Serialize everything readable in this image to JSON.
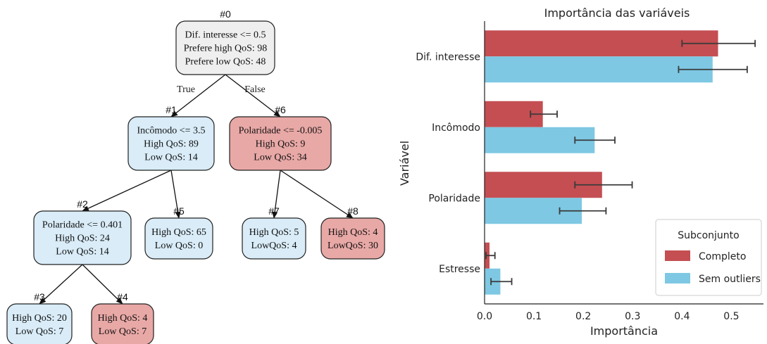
{
  "tree": {
    "nodes": [
      {
        "id": "#0",
        "lines": [
          "Dif. interesse <= 0.5",
          "Prefere high QoS: 98",
          "Prefere low QoS: 48"
        ],
        "fill": "#efefef"
      },
      {
        "id": "#1",
        "lines": [
          "Incômodo <= 3.5",
          "High QoS: 89",
          "Low QoS: 14"
        ],
        "fill": "#d9ecf8"
      },
      {
        "id": "#6",
        "lines": [
          "Polaridade <= -0.005",
          "High QoS: 9",
          "Low QoS: 34"
        ],
        "fill": "#e8a8a6"
      },
      {
        "id": "#2",
        "lines": [
          "Polaridade <= 0.401",
          "High QoS: 24",
          "Low QoS: 14"
        ],
        "fill": "#d9ecf8"
      },
      {
        "id": "#5",
        "lines": [
          "High QoS: 65",
          "Low QoS: 0"
        ],
        "fill": "#d9ecf8"
      },
      {
        "id": "#7",
        "lines": [
          "High QoS: 5",
          "LowQoS: 4"
        ],
        "fill": "#d9ecf8"
      },
      {
        "id": "#8",
        "lines": [
          "High QoS: 4",
          "LowQoS: 30"
        ],
        "fill": "#e8a8a6"
      },
      {
        "id": "#3",
        "lines": [
          "High QoS: 20",
          "Low QoS: 7"
        ],
        "fill": "#d9ecf8"
      },
      {
        "id": "#4",
        "lines": [
          "High QoS: 4",
          "Low QoS: 7"
        ],
        "fill": "#e8a8a6"
      }
    ],
    "edges": [
      {
        "from": "#0",
        "to": "#1",
        "label": "True"
      },
      {
        "from": "#0",
        "to": "#6",
        "label": "False"
      },
      {
        "from": "#1",
        "to": "#2",
        "label": ""
      },
      {
        "from": "#1",
        "to": "#5",
        "label": ""
      },
      {
        "from": "#6",
        "to": "#7",
        "label": ""
      },
      {
        "from": "#6",
        "to": "#8",
        "label": ""
      },
      {
        "from": "#2",
        "to": "#3",
        "label": ""
      },
      {
        "from": "#2",
        "to": "#4",
        "label": ""
      }
    ]
  },
  "chart_data": {
    "type": "bar",
    "orientation": "horizontal",
    "title": "Importância das variáveis",
    "xlabel": "Importância",
    "ylabel": "Variável",
    "categories": [
      "Dif. interesse",
      "Incômodo",
      "Polaridade",
      "Estresse"
    ],
    "xlim": [
      0,
      0.565
    ],
    "xticks": [
      "0.0",
      "0.1",
      "0.2",
      "0.3",
      "0.4",
      "0.5"
    ],
    "grid": false,
    "legend_title": "Subconjunto",
    "legend_position": "lower-right",
    "series": [
      {
        "name": "Completo",
        "color": "#c44e52",
        "values": [
          0.473,
          0.118,
          0.238,
          0.01
        ],
        "err_low": [
          0.4,
          0.093,
          0.183,
          0.003
        ],
        "err_high": [
          0.548,
          0.147,
          0.299,
          0.021
        ]
      },
      {
        "name": "Sem outliers",
        "color": "#7ec8e3",
        "values": [
          0.462,
          0.223,
          0.197,
          0.032
        ],
        "err_low": [
          0.393,
          0.183,
          0.152,
          0.013
        ],
        "err_high": [
          0.532,
          0.264,
          0.246,
          0.055
        ]
      }
    ]
  }
}
